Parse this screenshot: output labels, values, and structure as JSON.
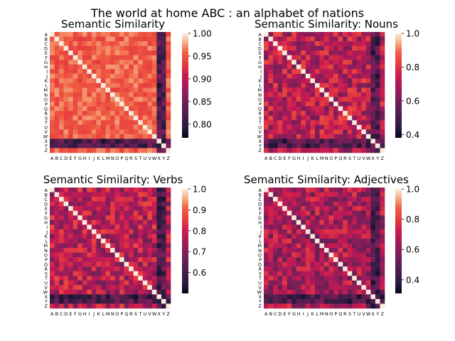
{
  "figure": {
    "suptitle": "The world at home ABC : an alphabet of nations"
  },
  "chart_data": [
    {
      "type": "heatmap",
      "title": "Semantic Similarity",
      "categories": [
        "A",
        "B",
        "C",
        "D",
        "E",
        "F",
        "G",
        "H",
        "I",
        "J",
        "K",
        "L",
        "M",
        "N",
        "O",
        "P",
        "Q",
        "R",
        "S",
        "T",
        "U",
        "V",
        "W",
        "X",
        "Y",
        "Z"
      ],
      "diagonal": 1.0,
      "value_range": [
        0.77,
        1.0
      ],
      "colorbar_ticks": [
        "1.00",
        "0.95",
        "0.90",
        "0.85",
        "0.80"
      ],
      "colorbar_tick_values": [
        1.0,
        0.95,
        0.9,
        0.85,
        0.8
      ],
      "dark_rows": [
        "X",
        "Y"
      ],
      "dark_cols": [
        "X",
        "Y"
      ],
      "note_values": "off-diagonal cells estimated, mostly 0.90-0.96"
    },
    {
      "type": "heatmap",
      "title": "Semantic Similarity: Nouns",
      "categories": [
        "A",
        "B",
        "C",
        "D",
        "E",
        "F",
        "G",
        "H",
        "I",
        "J",
        "K",
        "L",
        "M",
        "N",
        "O",
        "P",
        "Q",
        "R",
        "S",
        "T",
        "U",
        "V",
        "W",
        "X",
        "Y",
        "Z"
      ],
      "diagonal": 1.0,
      "value_range": [
        0.38,
        1.0
      ],
      "colorbar_ticks": [
        "1.0",
        "0.8",
        "0.6",
        "0.4"
      ],
      "colorbar_tick_values": [
        1.0,
        0.8,
        0.6,
        0.4
      ],
      "dark_rows": [
        "X",
        "Y"
      ],
      "dark_cols": [
        "X",
        "Y"
      ]
    },
    {
      "type": "heatmap",
      "title": "Semantic Similarity: Verbs",
      "categories": [
        "A",
        "B",
        "C",
        "D",
        "E",
        "F",
        "G",
        "H",
        "I",
        "J",
        "K",
        "L",
        "M",
        "N",
        "O",
        "P",
        "Q",
        "R",
        "S",
        "T",
        "U",
        "V",
        "W",
        "X",
        "Y",
        "Z"
      ],
      "diagonal": 1.0,
      "value_range": [
        0.5,
        1.0
      ],
      "colorbar_ticks": [
        "1.0",
        "0.9",
        "0.8",
        "0.7",
        "0.6"
      ],
      "colorbar_tick_values": [
        1.0,
        0.9,
        0.8,
        0.7,
        0.6
      ],
      "dark_rows": [
        "X",
        "Y"
      ],
      "dark_cols": [
        "X",
        "Y"
      ]
    },
    {
      "type": "heatmap",
      "title": "Semantic Similarity: Adjectives",
      "categories": [
        "A",
        "B",
        "C",
        "D",
        "E",
        "F",
        "G",
        "H",
        "I",
        "J",
        "K",
        "L",
        "M",
        "N",
        "O",
        "P",
        "Q",
        "R",
        "S",
        "T",
        "U",
        "V",
        "W",
        "X",
        "Y",
        "Z"
      ],
      "diagonal": 1.0,
      "value_range": [
        0.31,
        1.0
      ],
      "colorbar_ticks": [
        "1.0",
        "0.8",
        "0.6",
        "0.4"
      ],
      "colorbar_tick_values": [
        1.0,
        0.8,
        0.6,
        0.4
      ],
      "dark_rows": [
        "X",
        "Y"
      ],
      "dark_cols": [
        "X",
        "Y"
      ]
    }
  ]
}
